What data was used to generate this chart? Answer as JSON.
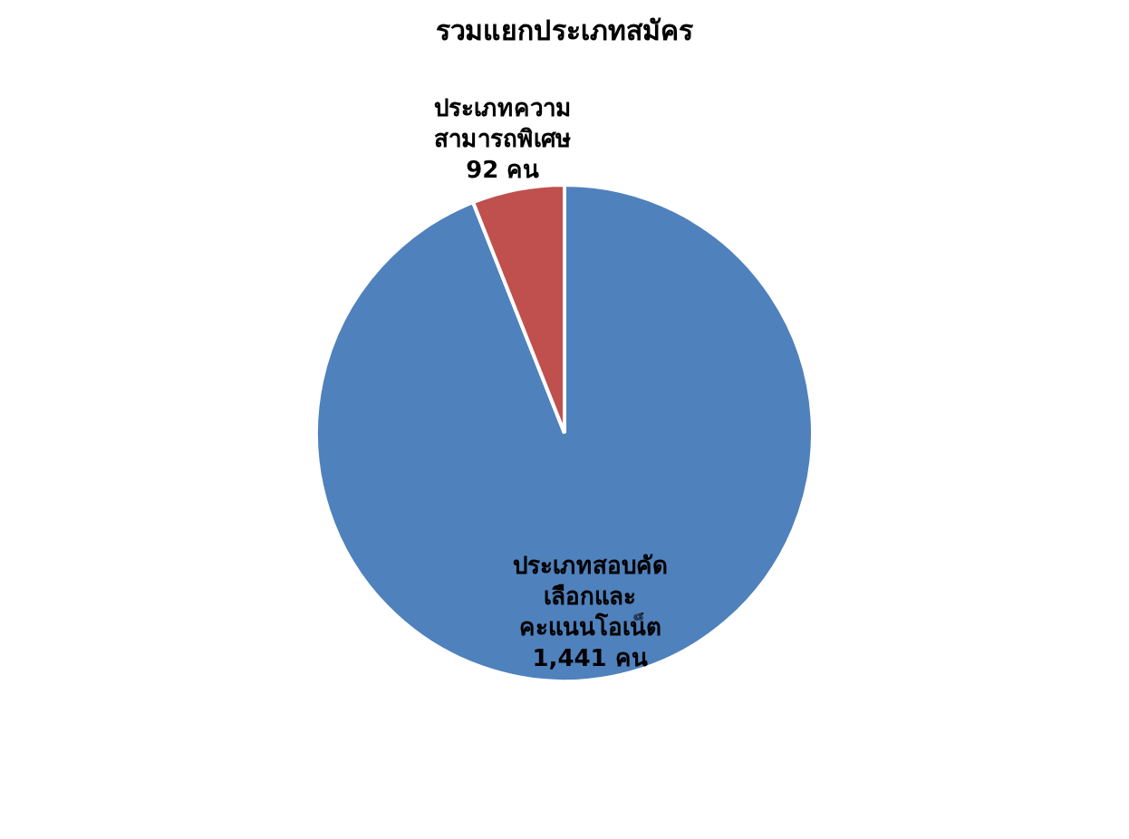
{
  "chart_data": {
    "type": "pie",
    "title": "รวมแยกประเภทสมัคร",
    "categories": [
      "ประเภทสอบคัดเลือกและคะแนนโอเน็ต",
      "ประเภทความสามารถพิเศษ"
    ],
    "values": [
      1441,
      92
    ],
    "colors": [
      "#4f81bd",
      "#c0504d"
    ],
    "value_labels": [
      "1,441 คน",
      "92 คน"
    ],
    "legend": false
  }
}
